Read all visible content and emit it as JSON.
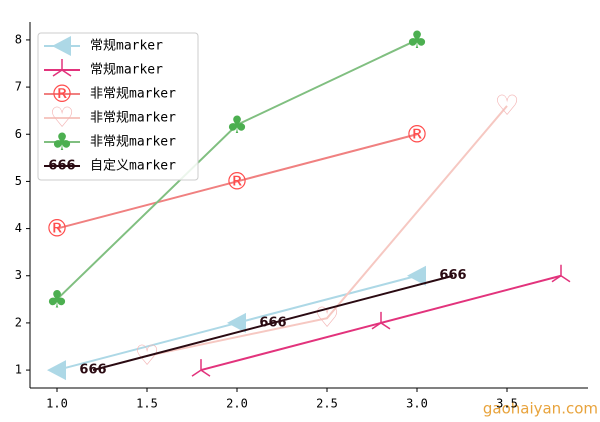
{
  "chart_data": {
    "type": "line",
    "xlim": [
      0.85,
      3.95
    ],
    "ylim": [
      0.62,
      8.38
    ],
    "xticks": [
      {
        "value": 1,
        "label": "1.0"
      },
      {
        "value": 1.5,
        "label": "1.5"
      },
      {
        "value": 2,
        "label": "2.0"
      },
      {
        "value": 2.5,
        "label": "2.5"
      },
      {
        "value": 3,
        "label": "3.0"
      },
      {
        "value": 3.5,
        "label": "3.5"
      }
    ],
    "yticks": [
      1,
      2,
      3,
      4,
      5,
      6,
      7,
      8
    ],
    "legend": "upper left",
    "watermark": "gaohaiyan.com",
    "series": [
      {
        "name": "常规marker",
        "color": "#add8e6",
        "marker": "<",
        "marker_color": "#add8e6",
        "x": [
          1,
          2,
          3
        ],
        "values": [
          1,
          2,
          3
        ]
      },
      {
        "name": "常规marker",
        "color": "#e2337c",
        "marker": "2",
        "marker_color": "#e2337c",
        "x": [
          1.8,
          2.8,
          3.8
        ],
        "values": [
          1,
          2,
          3
        ]
      },
      {
        "name": "非常规marker",
        "color": "#f08080",
        "marker": "®",
        "marker_color": "#ff4d4d",
        "x": [
          1,
          2,
          3
        ],
        "values": [
          4,
          5,
          6
        ]
      },
      {
        "name": "非常规marker",
        "color": "#f6c8c2",
        "marker": "♡",
        "marker_color": "#f4b8b8",
        "x": [
          1.5,
          2.5,
          3.5
        ],
        "values": [
          1.3,
          2.1,
          6.6
        ]
      },
      {
        "name": "非常规marker",
        "color": "#80bf80",
        "marker": "♣",
        "marker_color": "#4caf50",
        "x": [
          1,
          2,
          3
        ],
        "values": [
          2.5,
          6.2,
          8
        ]
      },
      {
        "name": "自定义marker",
        "color": "#2a0a12",
        "marker": "666",
        "marker_color": "#2a0a12",
        "x": [
          1.2,
          2.2,
          3.2
        ],
        "values": [
          1,
          2,
          3
        ]
      }
    ]
  }
}
